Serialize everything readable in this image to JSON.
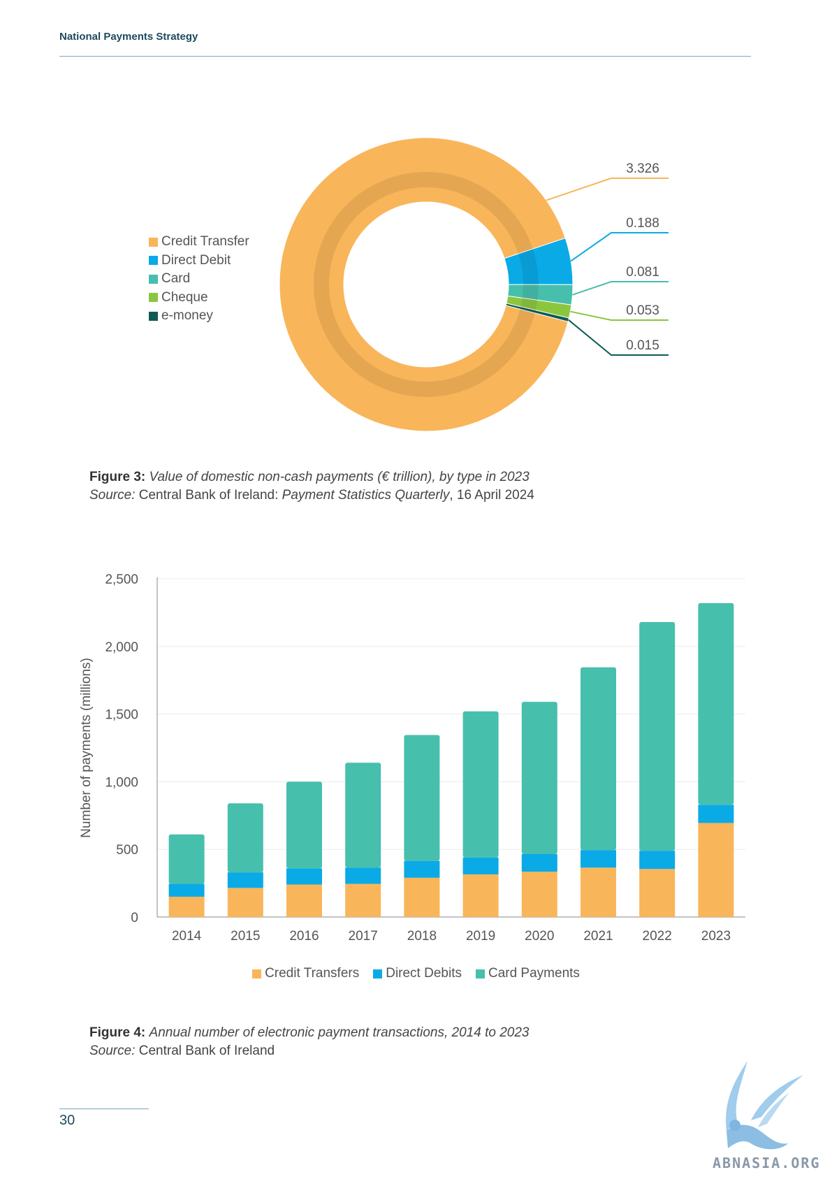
{
  "header": {
    "title": "National Payments Strategy"
  },
  "figure3": {
    "caption_label": "Figure 3:",
    "caption_text": "Value of domestic non-cash payments (€ trillion), by type in 2023",
    "source_label": "Source:",
    "source_text": "Central Bank of Ireland:",
    "source_title": "Payment Statistics Quarterly",
    "source_date": ", 16 April 2024"
  },
  "figure4": {
    "caption_label": "Figure 4:",
    "caption_text": "Annual number of electronic payment transactions, 2014 to 2023",
    "source_label": "Source:",
    "source_text": "Central Bank of Ireland"
  },
  "page_number": "30",
  "watermark": "ABNASIA.ORG",
  "chart_data": [
    {
      "type": "pie",
      "variant": "donut",
      "title": "",
      "legend_position": "left",
      "slices": [
        {
          "label": "Credit Transfer",
          "value": 3.326,
          "value_label": "3.326",
          "color": "#F9B55A"
        },
        {
          "label": "Direct Debit",
          "value": 0.188,
          "value_label": "0.188",
          "color": "#0AAAE6"
        },
        {
          "label": "Card",
          "value": 0.081,
          "value_label": "0.081",
          "color": "#47BFAD"
        },
        {
          "label": "Cheque",
          "value": 0.053,
          "value_label": "0.053",
          "color": "#8CC63F"
        },
        {
          "label": "e-money",
          "value": 0.015,
          "value_label": "0.015",
          "color": "#0E5B55"
        }
      ]
    },
    {
      "type": "bar",
      "stacked": true,
      "title": "",
      "xlabel": "",
      "ylabel": "Number of payments (millions)",
      "ylim": [
        0,
        2500
      ],
      "yticks": [
        0,
        500,
        1000,
        1500,
        2000,
        2500
      ],
      "ytick_labels": [
        "0",
        "500",
        "1,000",
        "1,500",
        "2,000",
        "2,500"
      ],
      "grid": true,
      "legend_position": "bottom",
      "categories": [
        "2014",
        "2015",
        "2016",
        "2017",
        "2018",
        "2019",
        "2020",
        "2021",
        "2022",
        "2023"
      ],
      "series": [
        {
          "name": "Credit Transfers",
          "color": "#F9B55A",
          "values": [
            150,
            215,
            240,
            245,
            290,
            315,
            335,
            365,
            355,
            695
          ]
        },
        {
          "name": "Direct Debits",
          "color": "#0AAAE6",
          "values": [
            95,
            115,
            120,
            120,
            125,
            125,
            130,
            130,
            135,
            135
          ]
        },
        {
          "name": "Card Payments",
          "color": "#47BFAD",
          "values": [
            365,
            510,
            640,
            775,
            930,
            1080,
            1125,
            1350,
            1690,
            1490
          ]
        }
      ]
    }
  ]
}
